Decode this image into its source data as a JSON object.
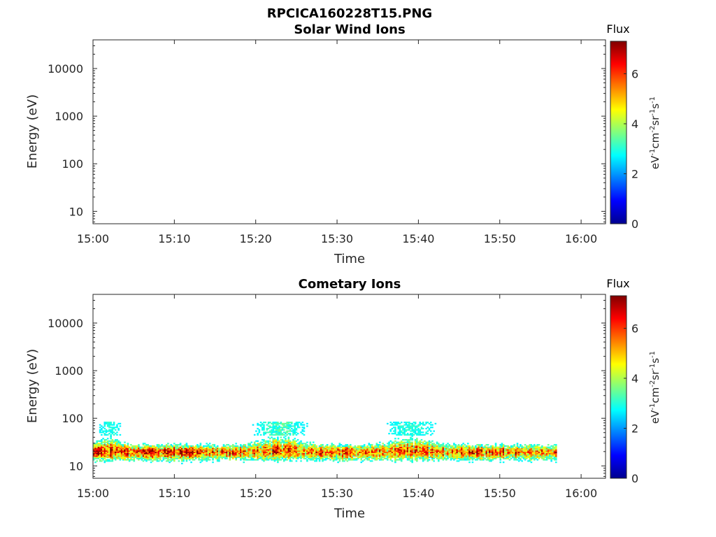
{
  "figure": {
    "title": "RPCICA160228T15.PNG"
  },
  "colorbar": {
    "title": "Flux",
    "unit_parts": [
      "eV",
      "-1",
      "cm",
      "-2",
      "sr",
      "-1",
      "s",
      "-1"
    ],
    "range": [
      0,
      7.3
    ],
    "ticks": [
      0,
      2,
      4,
      6
    ],
    "colormap": "jet"
  },
  "chart_data": [
    {
      "type": "heatmap",
      "title": "Solar Wind Ions",
      "xlabel": "Time",
      "ylabel": "Energy (eV)",
      "x_range": [
        "15:00",
        "16:03"
      ],
      "x_ticks": [
        "15:00",
        "15:10",
        "15:20",
        "15:30",
        "15:40",
        "15:50",
        "16:00"
      ],
      "y_scale": "log",
      "y_range": [
        5.5,
        40000
      ],
      "y_ticks": [
        10,
        100,
        1000,
        10000
      ],
      "y_tick_labels": [
        "10",
        "100",
        "1000",
        "10000"
      ],
      "data": []
    },
    {
      "type": "heatmap",
      "title": "Cometary Ions",
      "xlabel": "Time",
      "ylabel": "Energy (eV)",
      "x_range": [
        "15:00",
        "16:03"
      ],
      "x_ticks": [
        "15:00",
        "15:10",
        "15:20",
        "15:30",
        "15:40",
        "15:50",
        "16:00"
      ],
      "y_scale": "log",
      "y_range": [
        5.5,
        40000
      ],
      "y_ticks": [
        10,
        100,
        1000,
        10000
      ],
      "y_tick_labels": [
        "10",
        "100",
        "1000",
        "10000"
      ],
      "data_time_range": [
        "15:00",
        "15:57"
      ],
      "data_energy_range_eV": [
        6,
        85
      ],
      "peak_energy_eV": 20,
      "peak_flux": 7
    }
  ]
}
